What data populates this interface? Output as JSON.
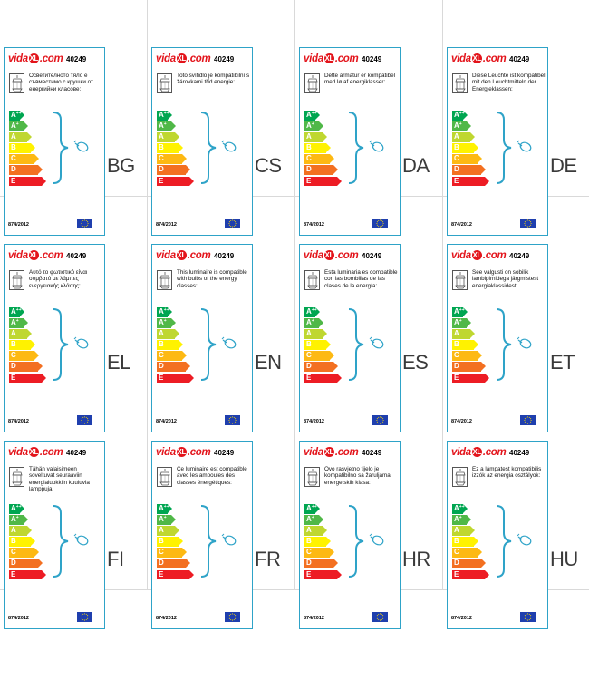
{
  "brand": {
    "name_left": "vida",
    "mark": "XL",
    "name_right": ".com"
  },
  "product_number": "40249",
  "regulation": "874/2012",
  "energy_classes": [
    {
      "letter": "A",
      "sup": "++",
      "color": "#00a651"
    },
    {
      "letter": "A",
      "sup": "+",
      "color": "#50b848"
    },
    {
      "letter": "A",
      "sup": "",
      "color": "#bfd730"
    },
    {
      "letter": "B",
      "sup": "",
      "color": "#fff200"
    },
    {
      "letter": "C",
      "sup": "",
      "color": "#fdb913"
    },
    {
      "letter": "D",
      "sup": "",
      "color": "#f37021"
    },
    {
      "letter": "E",
      "sup": "",
      "color": "#ed1c24"
    }
  ],
  "colors": {
    "frame": "#2ea3c8",
    "brand_red": "#e3141b",
    "eu_blue": "#1f3fae",
    "eu_star": "#ffdd00"
  },
  "icons": {
    "product": "lantern-icon",
    "bulb": "light-bulb-icon",
    "brace": "curly-brace-icon",
    "flag": "eu-flag-icon"
  },
  "labels": [
    {
      "lang": "BG",
      "text": "Осветителното тяло е съвместимо с крушки от енергийни класове:"
    },
    {
      "lang": "CS",
      "text": "Toto svítidlo je kompatibilní s žárovkami tříd energie:"
    },
    {
      "lang": "DA",
      "text": "Dette armatur er kompatibel med lø af energiklasser:"
    },
    {
      "lang": "DE",
      "text": "Diese Leuchte ist kompatibel mit den Leuchtmitteln der Energieklassen:"
    },
    {
      "lang": "EL",
      "text": "Αυτό το φωτιστικό είναι συμβατό με λάμπες ενεργειακής κλάσης:"
    },
    {
      "lang": "EN",
      "text": "This luminaire is compatible with bulbs of the energy classes:"
    },
    {
      "lang": "ES",
      "text": "Esta luminaria es compatible con las bombillas de las clases de la energía:"
    },
    {
      "lang": "ET",
      "text": "See valgusti on sobilik lambipirnidega järgmistest energiaklassidest:"
    },
    {
      "lang": "FI",
      "text": "Tähän valaisimeen soveltuvat seuraaviin energialuokkiin kuuluvia lamppuja:"
    },
    {
      "lang": "FR",
      "text": "Ce luminaire est compatible avec les ampoules des classes énergétiques:"
    },
    {
      "lang": "HR",
      "text": "Ovo rasvjetno tijelo je kompatibilno sa žaruljama energetskih klasa:"
    },
    {
      "lang": "HU",
      "text": "Ez a lámpatest kompatibilis izzók az energia osztályok:"
    }
  ]
}
